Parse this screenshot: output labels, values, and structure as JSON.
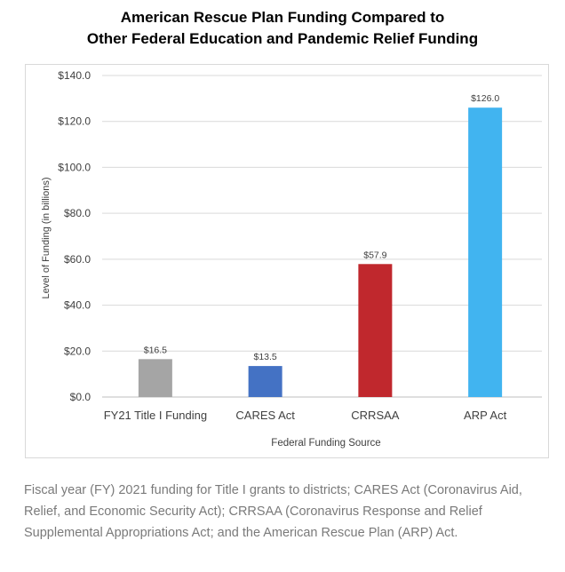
{
  "title_line1": "American Rescue Plan Funding Compared to",
  "title_line2": "Other Federal Education and Pandemic Relief Funding",
  "chart_data": {
    "type": "bar",
    "categories": [
      "FY21 Title I Funding",
      "CARES Act",
      "CRRSAA",
      "ARP Act"
    ],
    "values": [
      16.5,
      13.5,
      57.9,
      126.0
    ],
    "value_labels": [
      "$16.5",
      "$13.5",
      "$57.9",
      "$126.0"
    ],
    "colors": [
      "#a5a5a5",
      "#4472c4",
      "#c0282d",
      "#41b4f0"
    ],
    "title": "",
    "xlabel": "Federal Funding Source",
    "ylabel": "Level of Funding (in billions)",
    "ylim": [
      0,
      140
    ],
    "yticks": [
      0,
      20,
      40,
      60,
      80,
      100,
      120,
      140
    ],
    "ytick_labels": [
      "$0.0",
      "$20.0",
      "$40.0",
      "$60.0",
      "$80.0",
      "$100.0",
      "$120.0",
      "$140.0"
    ],
    "grid": true,
    "legend": "none"
  },
  "caption": "Fiscal year (FY) 2021 funding for Title I grants to districts; CARES Act (Coronavirus Aid, Relief, and Economic Security Act); CRRSAA (Coronavirus Response and Relief Supplemental Appropriations Act; and the American Rescue Plan (ARP) Act."
}
